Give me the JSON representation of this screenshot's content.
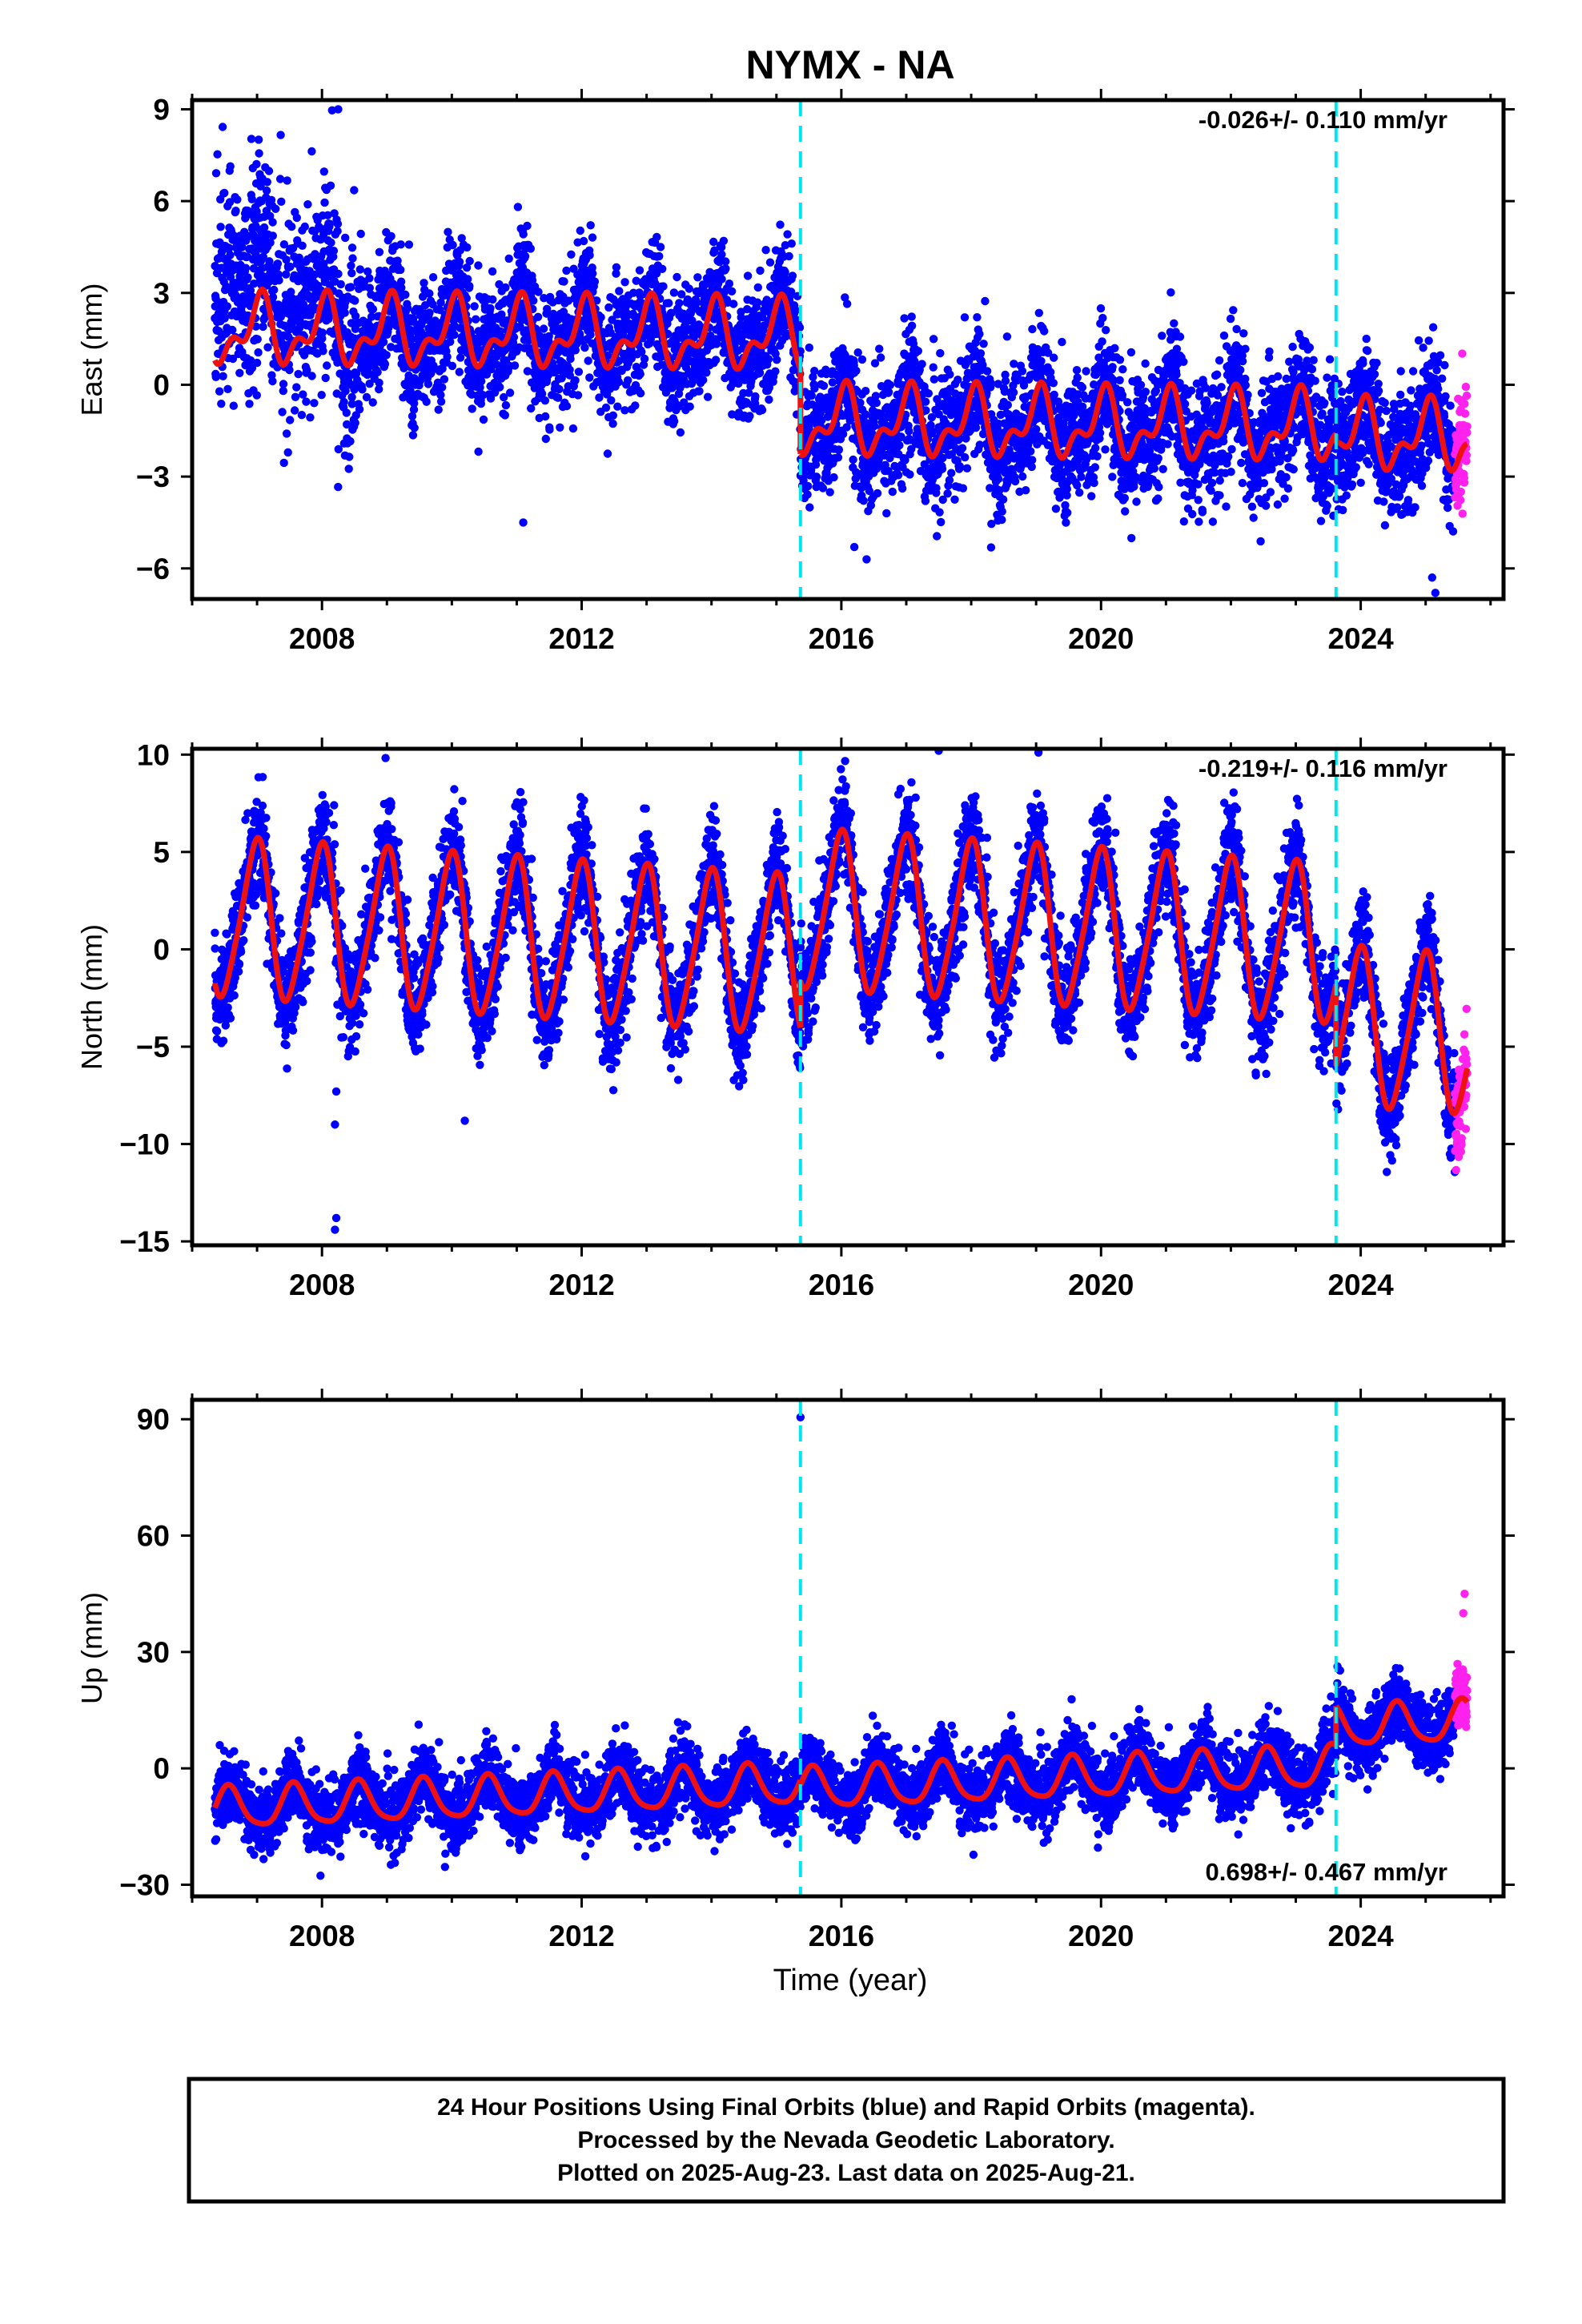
{
  "title": "NYMX - NA",
  "colors": {
    "final": "#0000ff",
    "rapid": "#ff22ee",
    "model": "#ee1111",
    "step": "#00e5ee",
    "frame": "#000000"
  },
  "x_label": "Time (year)",
  "footer": {
    "line1": "24 Hour Positions Using Final Orbits (blue) and Rapid Orbits (magenta).",
    "line2": "Processed by the Nevada Geodetic Laboratory.",
    "line3": "Plotted on 2025-Aug-23. Last data on 2025-Aug-21."
  },
  "chart_data": [
    {
      "type": "scatter",
      "component": "east",
      "ylabel": "East (mm)",
      "rate_label": "-0.026+/- 0.110 mm/yr",
      "rate_position": "top-right",
      "xlim": [
        2006.0,
        2026.2
      ],
      "ylim": [
        -7.0,
        9.3
      ],
      "xticks": [
        2008,
        2012,
        2016,
        2020,
        2024
      ],
      "yticks": [
        9,
        6,
        3,
        0,
        -3,
        -6
      ],
      "ytick_labels": [
        "9",
        "6",
        "3",
        "0",
        "−3",
        "−6"
      ],
      "data_start": 2006.35,
      "data_end": 2025.64,
      "rapid_start": 2025.45,
      "step_epochs": [
        2015.37,
        2023.62
      ],
      "model": {
        "segments": [
          {
            "start": 2006.35,
            "end": 2015.37,
            "offset": 1.75,
            "trend": -0.02
          },
          {
            "start": 2015.37,
            "end": 2023.62,
            "offset": -1.05,
            "trend": -0.02
          },
          {
            "start": 2023.62,
            "end": 2025.64,
            "offset": -1.35,
            "trend": -0.02
          }
        ],
        "annual_amp": 0.9,
        "annual_phase": 1.4,
        "semiannual_amp": 0.55,
        "semiannual_phase": 0.3
      },
      "scatter_sd": 1.0,
      "extra_scatter": [
        {
          "start": 2006.35,
          "end": 2008.6,
          "sd": 1.6,
          "shift": 2.4
        }
      ],
      "outliers": [
        [
          2008.25,
          9.0
        ],
        [
          2011.1,
          -4.5
        ],
        [
          2025.15,
          -6.8
        ],
        [
          2025.1,
          -6.3
        ],
        [
          2016.2,
          -5.3
        ]
      ]
    },
    {
      "type": "scatter",
      "component": "north",
      "ylabel": "North (mm)",
      "rate_label": "-0.219+/- 0.116 mm/yr",
      "rate_position": "top-right",
      "xlim": [
        2006.0,
        2026.2
      ],
      "ylim": [
        -15.2,
        10.3
      ],
      "xticks": [
        2008,
        2012,
        2016,
        2020,
        2024
      ],
      "yticks": [
        10,
        5,
        0,
        -5,
        -10,
        -15
      ],
      "ytick_labels": [
        "10",
        "5",
        "0",
        "−5",
        "−10",
        "−15"
      ],
      "data_start": 2006.35,
      "data_end": 2025.64,
      "rapid_start": 2025.45,
      "step_epochs": [
        2015.37,
        2023.62
      ],
      "model": {
        "segments": [
          {
            "start": 2006.35,
            "end": 2015.37,
            "offset": 1.6,
            "trend": -0.22
          },
          {
            "start": 2015.37,
            "end": 2023.62,
            "offset": 4.0,
            "trend": -0.22
          },
          {
            "start": 2023.62,
            "end": 2025.64,
            "offset": -0.2,
            "trend": -0.22
          }
        ],
        "annual_amp": 4.0,
        "annual_phase": 1.7,
        "semiannual_amp": 0.6,
        "semiannual_phase": 0.5
      },
      "scatter_sd": 1.3,
      "extra_scatter": [],
      "outliers": [
        [
          2008.2,
          -14.4
        ],
        [
          2008.22,
          -13.8
        ],
        [
          2008.2,
          -9.0
        ],
        [
          2008.22,
          -7.3
        ],
        [
          2010.2,
          -8.8
        ],
        [
          2017.5,
          10.2
        ]
      ]
    },
    {
      "type": "scatter",
      "component": "up",
      "ylabel": "Up (mm)",
      "rate_label": "0.698+/- 0.467 mm/yr",
      "rate_position": "bottom-right",
      "xlim": [
        2006.0,
        2026.2
      ],
      "ylim": [
        -33,
        95
      ],
      "xticks": [
        2008,
        2012,
        2016,
        2020,
        2024
      ],
      "yticks": [
        90,
        60,
        30,
        0,
        -30
      ],
      "ytick_labels": [
        "90",
        "60",
        "30",
        "0",
        "−30"
      ],
      "data_start": 2006.35,
      "data_end": 2025.64,
      "rapid_start": 2025.45,
      "step_epochs": [
        2015.37,
        2023.62
      ],
      "model": {
        "segments": [
          {
            "start": 2006.35,
            "end": 2015.37,
            "offset": -10.5,
            "trend": 0.7
          },
          {
            "start": 2015.37,
            "end": 2023.62,
            "offset": -11.8,
            "trend": 0.7
          },
          {
            "start": 2023.62,
            "end": 2025.64,
            "offset": -1.5,
            "trend": 0.7
          }
        ],
        "annual_amp": 5.2,
        "annual_phase": 4.3,
        "semiannual_amp": 1.0,
        "semiannual_phase": 1.0
      },
      "scatter_sd": 4.3,
      "extra_scatter": [],
      "outliers": [
        [
          2015.37,
          90.5
        ],
        [
          2025.6,
          45
        ],
        [
          2025.58,
          40
        ]
      ]
    }
  ]
}
